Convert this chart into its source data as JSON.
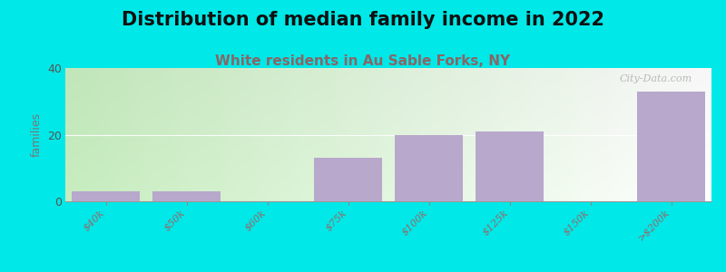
{
  "title": "Distribution of median family income in 2022",
  "subtitle": "White residents in Au Sable Forks, NY",
  "categories": [
    "$40k",
    "$50k",
    "$60k",
    "$75k",
    "$100k",
    "$125k",
    "$150k",
    ">$200k"
  ],
  "values": [
    3,
    3,
    0,
    13,
    20,
    21,
    0,
    33
  ],
  "bar_color": "#b8a8cc",
  "background_color": "#00e8e8",
  "plot_bg_color_tl": "#c8e8c0",
  "plot_bg_color_tr": "#f0f0f0",
  "plot_bg_color_bl": "#d8ecd0",
  "plot_bg_color_br": "#ffffff",
  "ylabel": "families",
  "ylim": [
    0,
    40
  ],
  "yticks": [
    0,
    20,
    40
  ],
  "watermark": "City-Data.com",
  "title_fontsize": 15,
  "subtitle_fontsize": 11,
  "subtitle_color": "#886666",
  "tick_color": "#996666",
  "tick_fontsize": 8,
  "ylabel_color": "#777777",
  "ytick_color": "#555555"
}
